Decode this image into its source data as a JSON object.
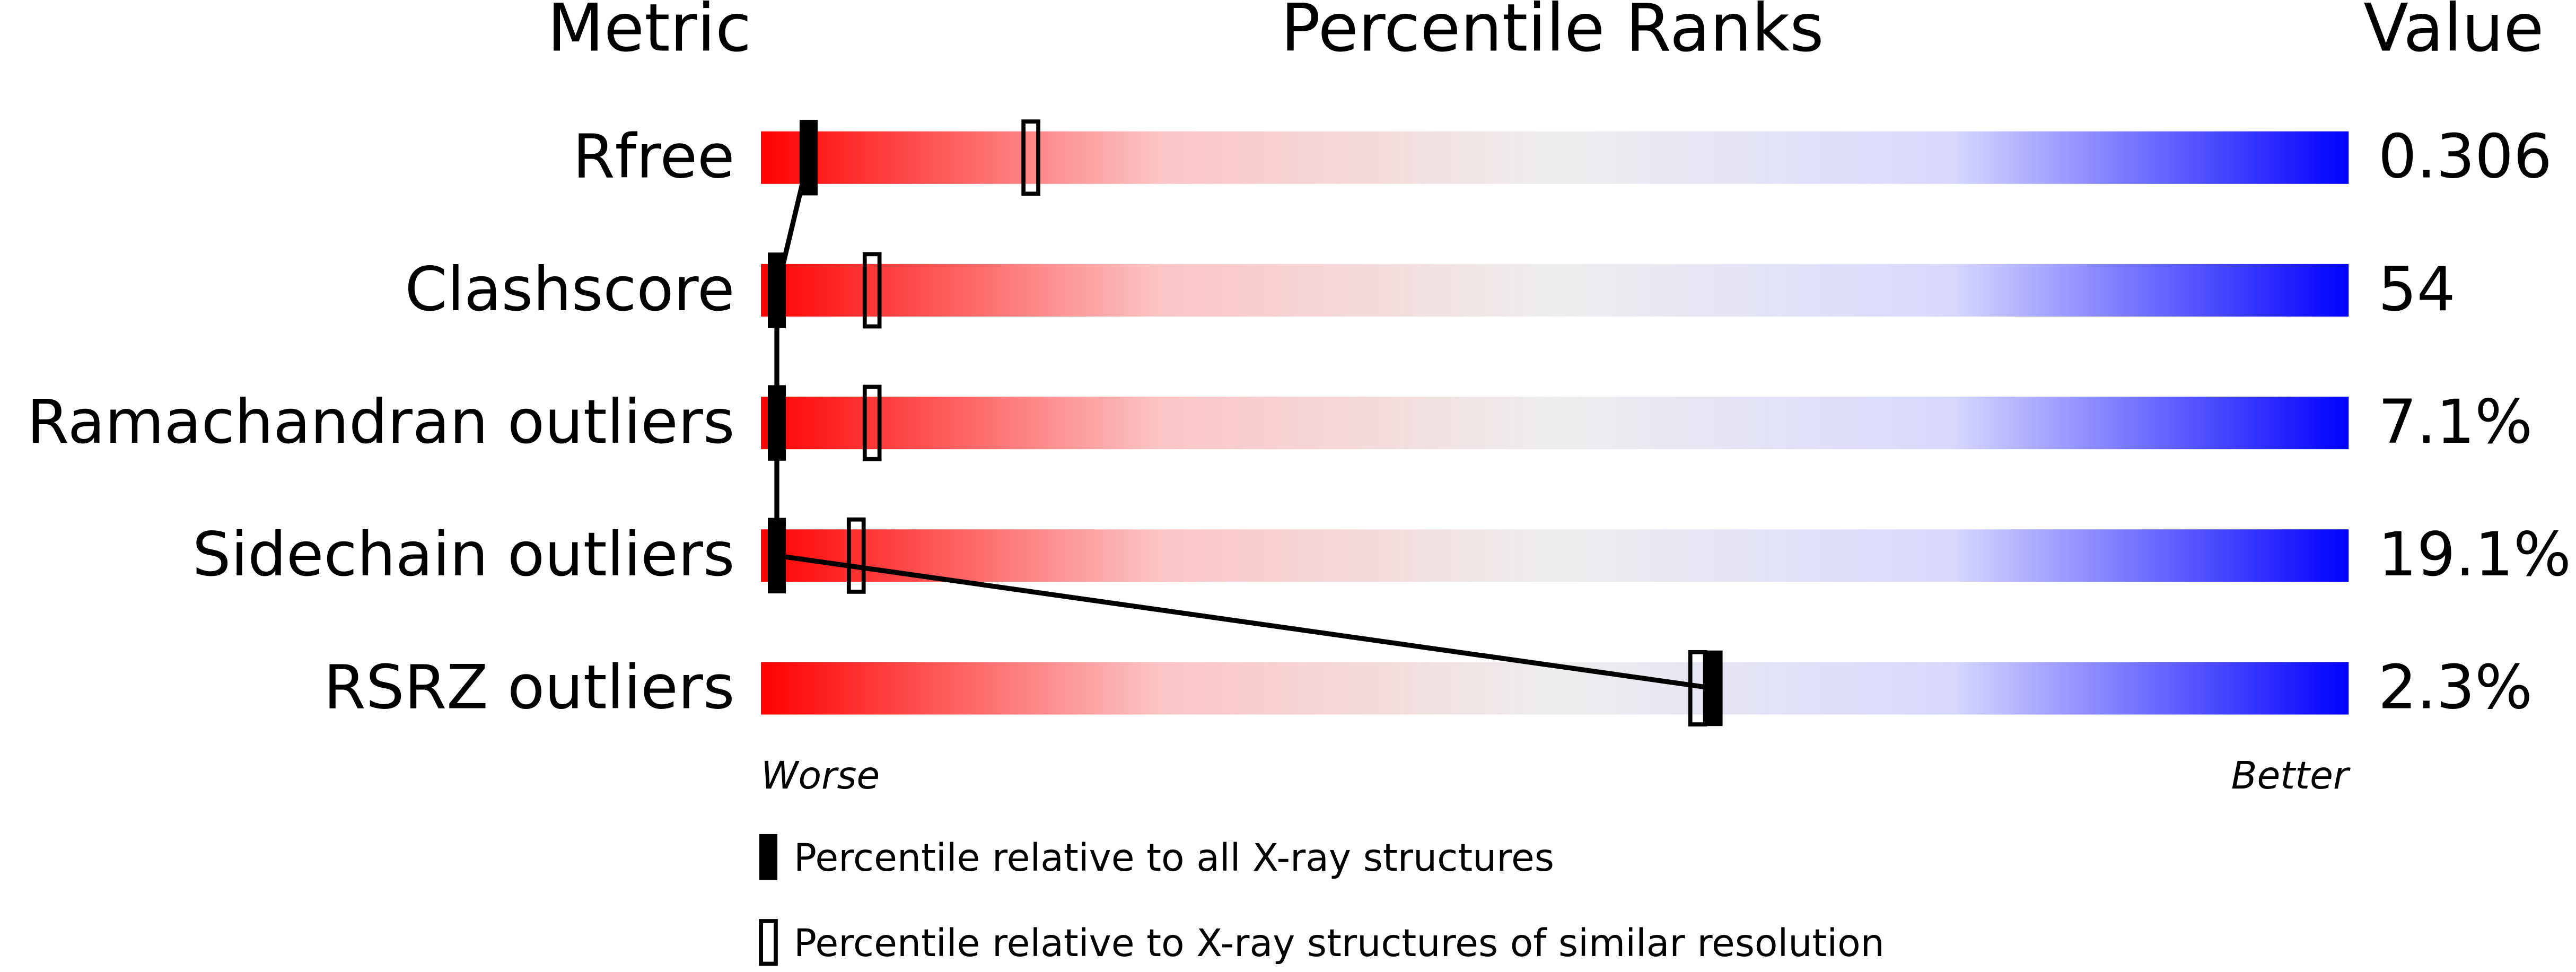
{
  "chart_data": {
    "type": "percentile",
    "title": "Percentile Ranks",
    "metric_header": "Metric",
    "value_header": "Value",
    "categories": [
      "Rfree",
      "Clashscore",
      "Ramachandran outliers",
      "Sidechain outliers",
      "RSRZ outliers"
    ],
    "metric_values": [
      "0.306",
      "54",
      "7.1%",
      "19.1%",
      "2.3%"
    ],
    "xlim": [
      0,
      100
    ],
    "x_label_low": "Worse",
    "x_label_high": "Better",
    "gradient": [
      "#ff0000",
      "#fcc4c4",
      "#eeeeee",
      "#d8d8ff",
      "#0000ff"
    ],
    "series": [
      {
        "name": "Percentile relative to all X-ray structures",
        "style": "filled",
        "color": "#000000",
        "values": [
          3,
          1,
          1,
          1,
          60
        ]
      },
      {
        "name": "Percentile relative to X-ray structures of similar resolution",
        "style": "open",
        "color": "#000000",
        "values": [
          17,
          7,
          7,
          6,
          59
        ]
      }
    ]
  }
}
